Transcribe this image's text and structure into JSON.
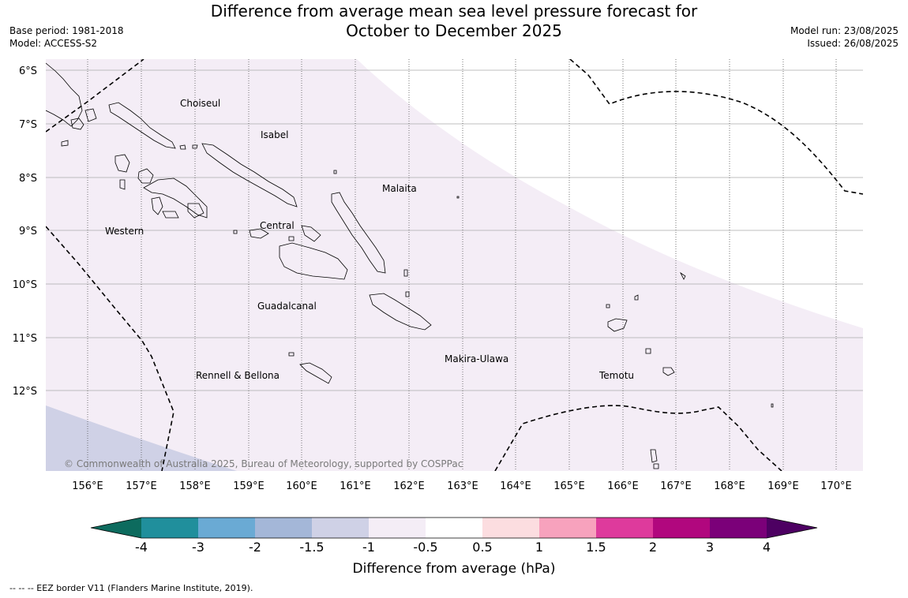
{
  "title": {
    "line1": "Difference from average mean sea level pressure forecast for",
    "line2": "October to December 2025"
  },
  "meta_left": {
    "base_period": "Base period: 1981-2018",
    "model": "Model: ACCESS-S2"
  },
  "meta_right": {
    "model_run": "Model run: 23/08/2025",
    "issued": "Issued: 26/08/2025"
  },
  "map": {
    "lat_labels": [
      "6°S",
      "7°S",
      "8°S",
      "9°S",
      "10°S",
      "11°S",
      "12°S"
    ],
    "lon_labels": [
      "156°E",
      "157°E",
      "158°E",
      "159°E",
      "160°E",
      "161°E",
      "162°E",
      "163°E",
      "164°E",
      "165°E",
      "166°E",
      "167°E",
      "168°E",
      "169°E",
      "170°E"
    ],
    "regions": [
      "Choiseul",
      "Isabel",
      "Malaita",
      "Western",
      "Central",
      "Guadalcanal",
      "Rennell & Bellona",
      "Makira-Ulawa",
      "Temotu"
    ],
    "copyright": "© Commonwealth of Australia 2025, Bureau of Meteorology, supported by COSPPac"
  },
  "colorbar": {
    "colors": {
      "lt-4": "#0d6b5e",
      "-4_-3": "#208f9c",
      "-3_-2": "#6aaad4",
      "-2_-1.5": "#a4b7d8",
      "-1.5_-1": "#cfd1e6",
      "-1_-0.5": "#f4edf6",
      "-0.5_0.5": "#ffffff",
      "0.5_1": "#fcdde0",
      "1_1.5": "#f7a2bd",
      "1.5_2": "#de3a9c",
      "2_3": "#b1077e",
      "3_4": "#7b0079",
      "gt4": "#4d0062"
    },
    "ticks": [
      "-4",
      "-3",
      "-2",
      "-1.5",
      "-1",
      "-0.5",
      "0.5",
      "1",
      "1.5",
      "2",
      "3",
      "4"
    ],
    "label": "Difference from average (hPa)"
  },
  "legend_note": "--  --  -- EEZ border V11 (Flanders Marine Institute, 2019)."
}
